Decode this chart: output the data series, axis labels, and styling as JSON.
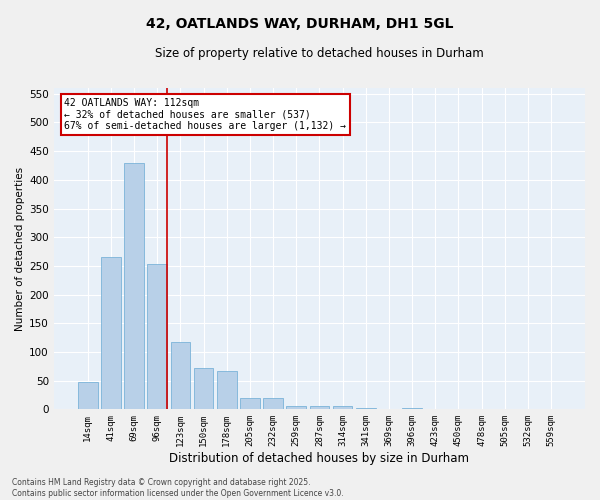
{
  "title": "42, OATLANDS WAY, DURHAM, DH1 5GL",
  "subtitle": "Size of property relative to detached houses in Durham",
  "xlabel": "Distribution of detached houses by size in Durham",
  "ylabel": "Number of detached properties",
  "bar_color": "#b8d0e8",
  "bar_edge_color": "#6aaad4",
  "background_color": "#e8f0f8",
  "grid_color": "#ffffff",
  "categories": [
    "14sqm",
    "41sqm",
    "69sqm",
    "96sqm",
    "123sqm",
    "150sqm",
    "178sqm",
    "205sqm",
    "232sqm",
    "259sqm",
    "287sqm",
    "314sqm",
    "341sqm",
    "369sqm",
    "396sqm",
    "423sqm",
    "450sqm",
    "478sqm",
    "505sqm",
    "532sqm",
    "559sqm"
  ],
  "values": [
    47,
    265,
    430,
    253,
    118,
    72,
    67,
    20,
    20,
    5,
    5,
    5,
    2,
    0,
    2,
    0,
    0,
    0,
    0,
    0,
    0
  ],
  "ylim": [
    0,
    560
  ],
  "yticks": [
    0,
    50,
    100,
    150,
    200,
    250,
    300,
    350,
    400,
    450,
    500,
    550
  ],
  "vline_color": "#cc0000",
  "vline_x": 3.43,
  "annotation_text_line1": "42 OATLANDS WAY: 112sqm",
  "annotation_text_line2": "← 32% of detached houses are smaller (537)",
  "annotation_text_line3": "67% of semi-detached houses are larger (1,132) →",
  "annotation_box_color": "#ffffff",
  "annotation_box_edge_color": "#cc0000",
  "footer_line1": "Contains HM Land Registry data © Crown copyright and database right 2025.",
  "footer_line2": "Contains public sector information licensed under the Open Government Licence v3.0.",
  "fig_bg": "#f0f0f0"
}
